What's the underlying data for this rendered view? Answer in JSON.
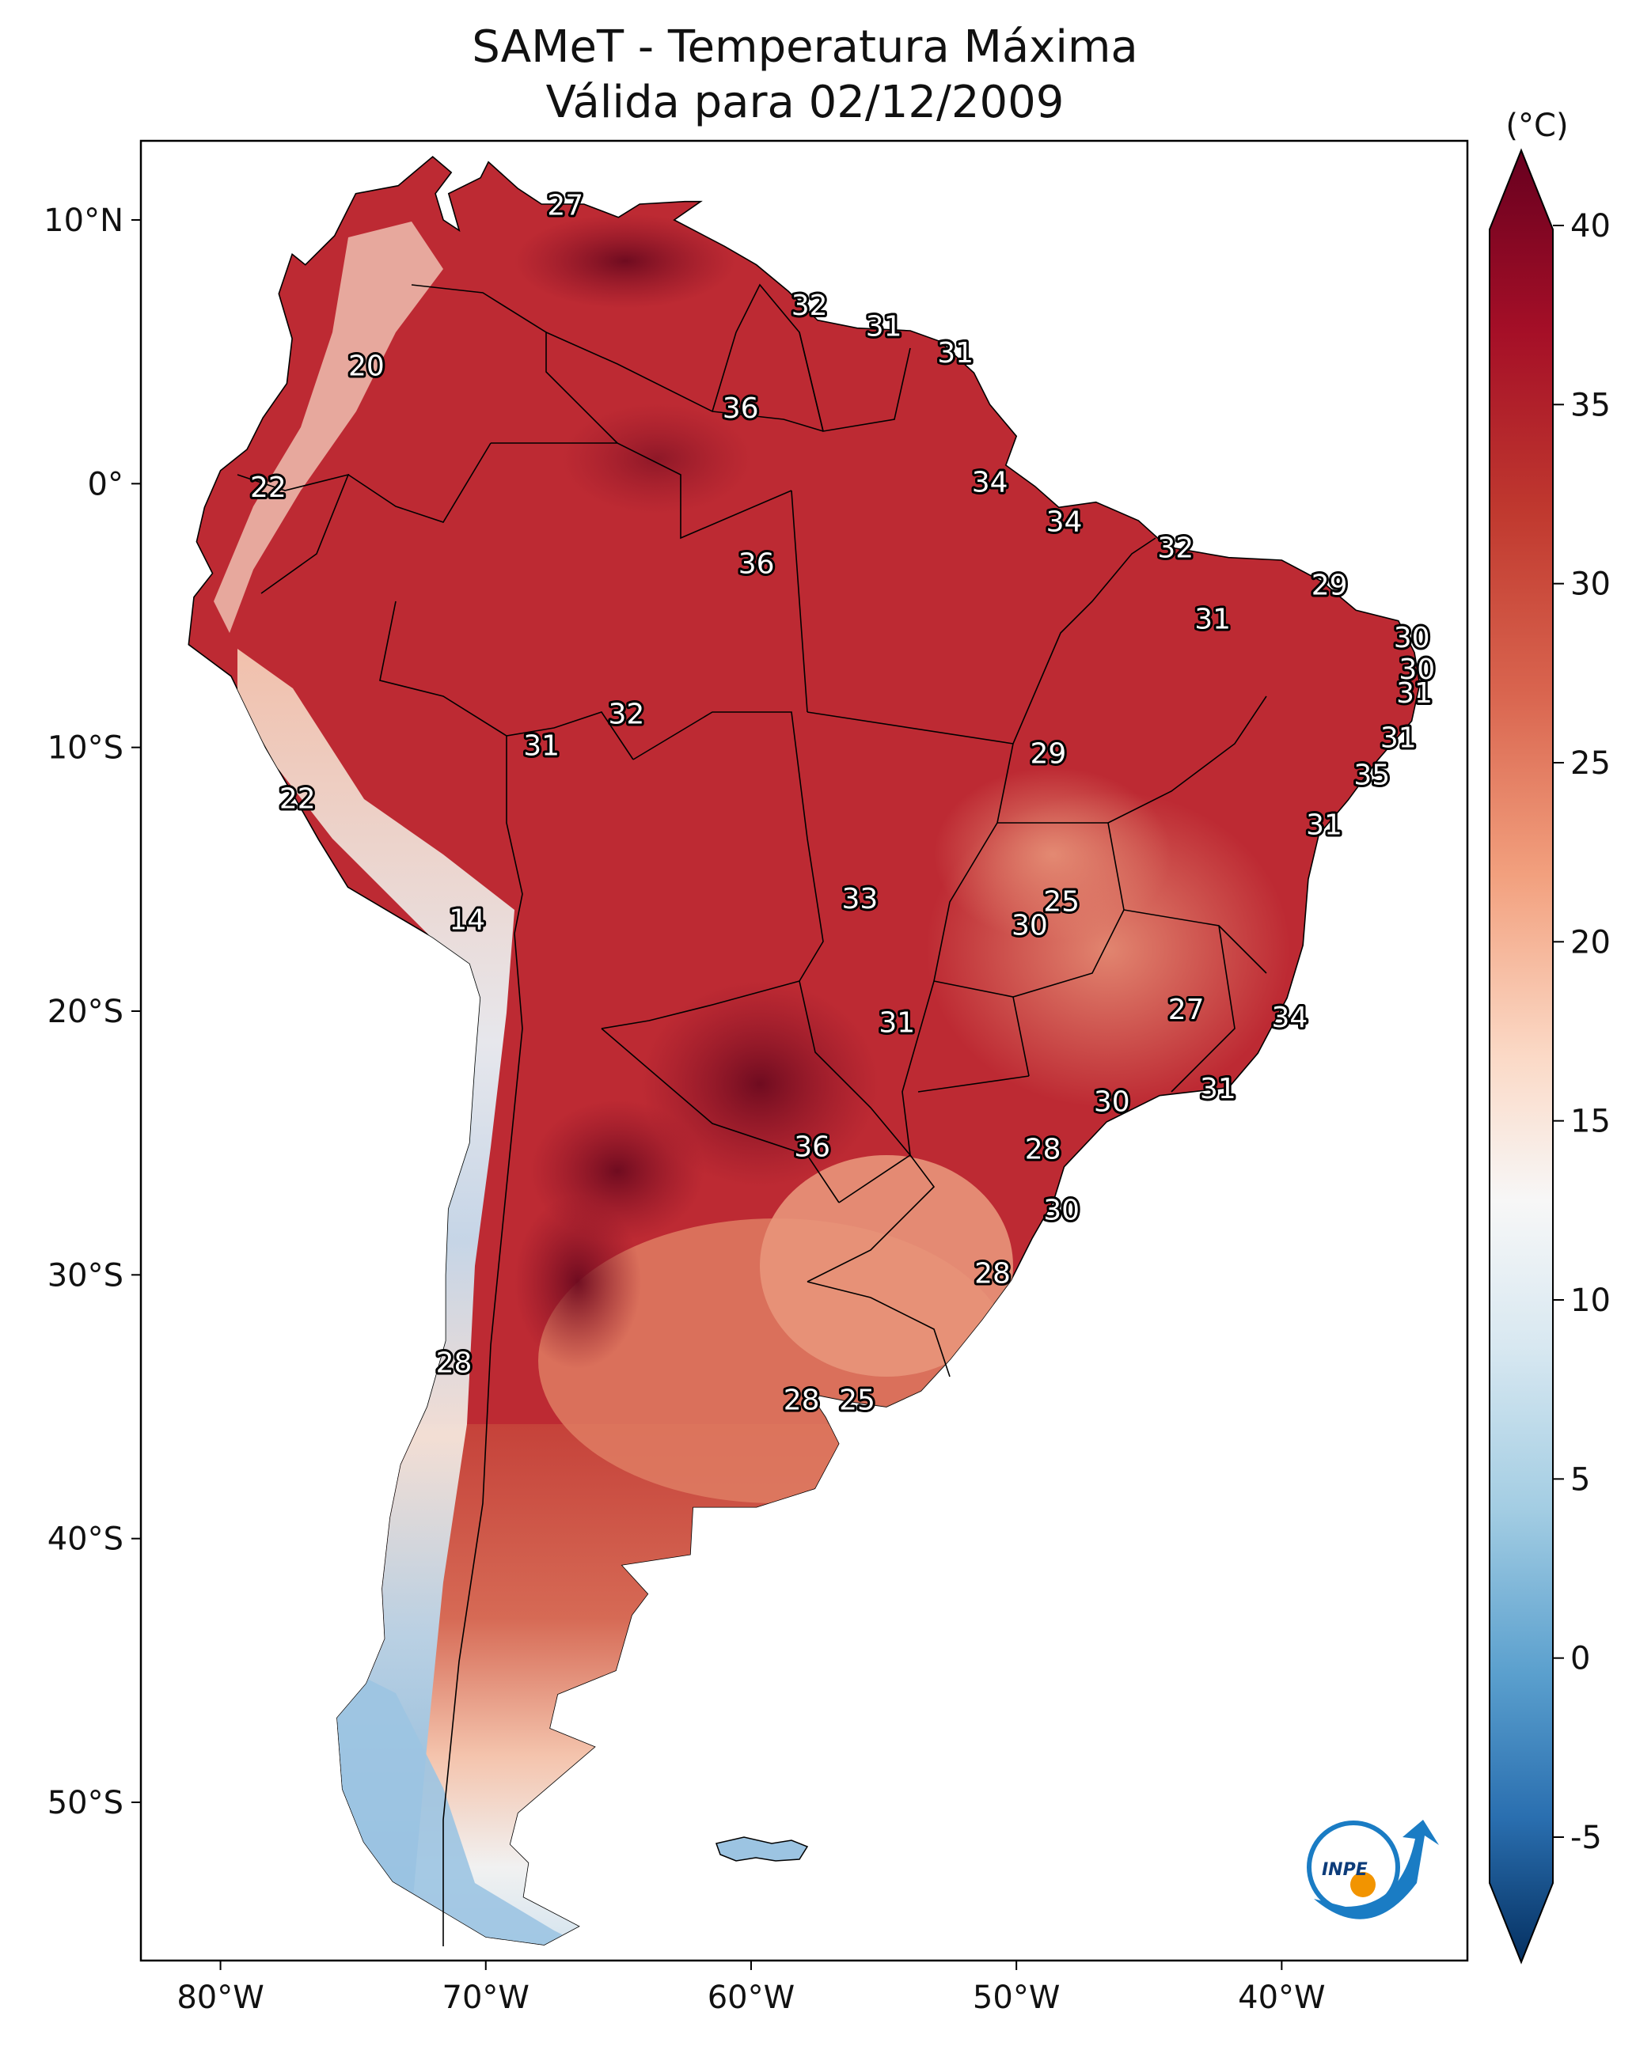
{
  "title": {
    "line1": "SAMeT - Temperatura Máxima",
    "line2": "Válida para 02/12/2009"
  },
  "map": {
    "lon_range": [
      -83,
      -33
    ],
    "lat_range": [
      -56,
      13
    ],
    "x_ticks": [
      {
        "lon": -80,
        "label": "80°W"
      },
      {
        "lon": -70,
        "label": "70°W"
      },
      {
        "lon": -60,
        "label": "60°W"
      },
      {
        "lon": -50,
        "label": "50°W"
      },
      {
        "lon": -40,
        "label": "40°W"
      }
    ],
    "y_ticks": [
      {
        "lat": 10,
        "label": "10°N"
      },
      {
        "lat": 0,
        "label": "0°"
      },
      {
        "lat": -10,
        "label": "10°S"
      },
      {
        "lat": -20,
        "label": "20°S"
      },
      {
        "lat": -30,
        "label": "30°S"
      },
      {
        "lat": -40,
        "label": "40°S"
      },
      {
        "lat": -50,
        "label": "50°S"
      }
    ],
    "temperature_labels": [
      {
        "lon": -67.0,
        "lat": 10.5,
        "value": "27"
      },
      {
        "lon": -57.8,
        "lat": 6.7,
        "value": "32"
      },
      {
        "lon": -55.0,
        "lat": 5.9,
        "value": "31"
      },
      {
        "lon": -52.3,
        "lat": 4.9,
        "value": "31"
      },
      {
        "lon": -74.5,
        "lat": 4.4,
        "value": "20"
      },
      {
        "lon": -60.4,
        "lat": 2.8,
        "value": "36"
      },
      {
        "lon": -51.0,
        "lat": 0.0,
        "value": "34"
      },
      {
        "lon": -78.2,
        "lat": -0.2,
        "value": "22"
      },
      {
        "lon": -48.2,
        "lat": -1.5,
        "value": "34"
      },
      {
        "lon": -59.8,
        "lat": -3.1,
        "value": "36"
      },
      {
        "lon": -44.0,
        "lat": -2.5,
        "value": "32"
      },
      {
        "lon": -38.2,
        "lat": -3.9,
        "value": "29"
      },
      {
        "lon": -42.6,
        "lat": -5.2,
        "value": "31"
      },
      {
        "lon": -35.1,
        "lat": -5.9,
        "value": "30"
      },
      {
        "lon": -34.9,
        "lat": -7.1,
        "value": "30"
      },
      {
        "lon": -35.0,
        "lat": -8.0,
        "value": "31"
      },
      {
        "lon": -64.7,
        "lat": -8.8,
        "value": "32"
      },
      {
        "lon": -67.9,
        "lat": -10.0,
        "value": "31"
      },
      {
        "lon": -48.8,
        "lat": -10.3,
        "value": "29"
      },
      {
        "lon": -35.6,
        "lat": -9.7,
        "value": "31"
      },
      {
        "lon": -36.6,
        "lat": -11.1,
        "value": "35"
      },
      {
        "lon": -77.1,
        "lat": -12.0,
        "value": "22"
      },
      {
        "lon": -38.4,
        "lat": -13.0,
        "value": "31"
      },
      {
        "lon": -55.9,
        "lat": -15.8,
        "value": "33"
      },
      {
        "lon": -70.7,
        "lat": -16.6,
        "value": "14"
      },
      {
        "lon": -48.3,
        "lat": -15.9,
        "value": "25"
      },
      {
        "lon": -49.5,
        "lat": -16.8,
        "value": "30"
      },
      {
        "lon": -43.6,
        "lat": -20.0,
        "value": "27"
      },
      {
        "lon": -54.5,
        "lat": -20.5,
        "value": "31"
      },
      {
        "lon": -39.7,
        "lat": -20.3,
        "value": "34"
      },
      {
        "lon": -42.4,
        "lat": -23.0,
        "value": "31"
      },
      {
        "lon": -46.4,
        "lat": -23.5,
        "value": "30"
      },
      {
        "lon": -57.7,
        "lat": -25.2,
        "value": "36"
      },
      {
        "lon": -49.0,
        "lat": -25.3,
        "value": "28"
      },
      {
        "lon": -48.3,
        "lat": -27.6,
        "value": "30"
      },
      {
        "lon": -50.9,
        "lat": -30.0,
        "value": "28"
      },
      {
        "lon": -71.2,
        "lat": -33.4,
        "value": "28"
      },
      {
        "lon": -58.1,
        "lat": -34.8,
        "value": "28"
      },
      {
        "lon": -56.0,
        "lat": -34.8,
        "value": "25"
      }
    ]
  },
  "colorbar": {
    "unit": "(°C)",
    "min": -7,
    "max": 40,
    "ticks": [
      {
        "value": 40,
        "label": "40"
      },
      {
        "value": 35,
        "label": "35"
      },
      {
        "value": 30,
        "label": "30"
      },
      {
        "value": 25,
        "label": "25"
      },
      {
        "value": 20,
        "label": "20"
      },
      {
        "value": 15,
        "label": "15"
      },
      {
        "value": 10,
        "label": "10"
      },
      {
        "value": 5,
        "label": "5"
      },
      {
        "value": 0,
        "label": "0"
      },
      {
        "value": -5,
        "label": "-5"
      }
    ],
    "colors": [
      "#67001f",
      "#b2182b",
      "#d6604d",
      "#f4a582",
      "#fddbc7",
      "#f7f7f7",
      "#d1e5f0",
      "#92c5de",
      "#4393c3",
      "#2166ac",
      "#053061"
    ]
  },
  "logo": {
    "text": "INPE",
    "colors": {
      "ring": "#1a7cc4",
      "dot": "#f29400"
    }
  }
}
